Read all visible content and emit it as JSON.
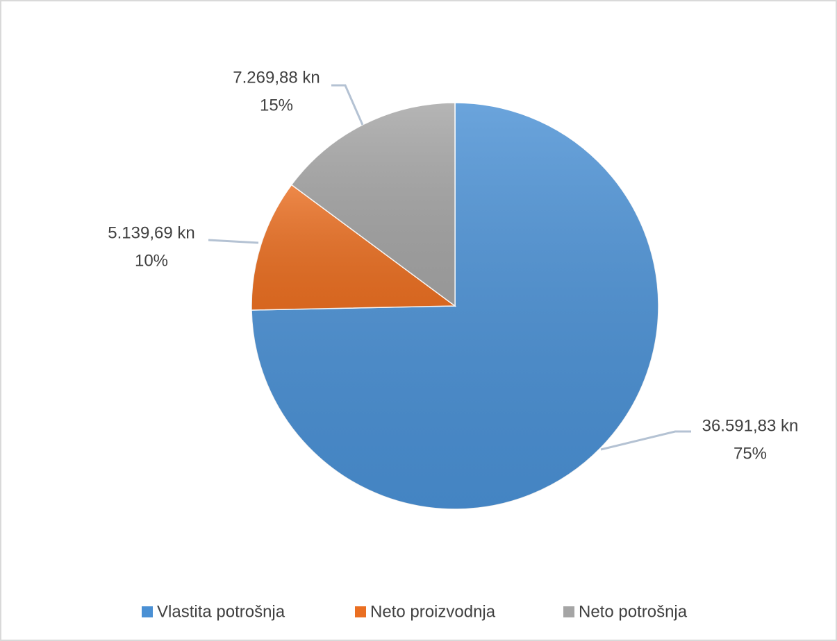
{
  "chart_data": {
    "type": "pie",
    "categories": [
      "Vlastita potrošnja",
      "Neto proizvodnja",
      "Neto potrošnja"
    ],
    "values": [
      36591.83,
      5139.69,
      7269.88
    ],
    "value_labels": [
      "36.591,83 kn",
      "5.139,69 kn",
      "7.269,88 kn"
    ],
    "percent_labels": [
      "75%",
      "10%",
      "15%"
    ],
    "colors": [
      "#4a90d4",
      "#ea6f22",
      "#a5a5a5"
    ],
    "legend": "bottom"
  }
}
